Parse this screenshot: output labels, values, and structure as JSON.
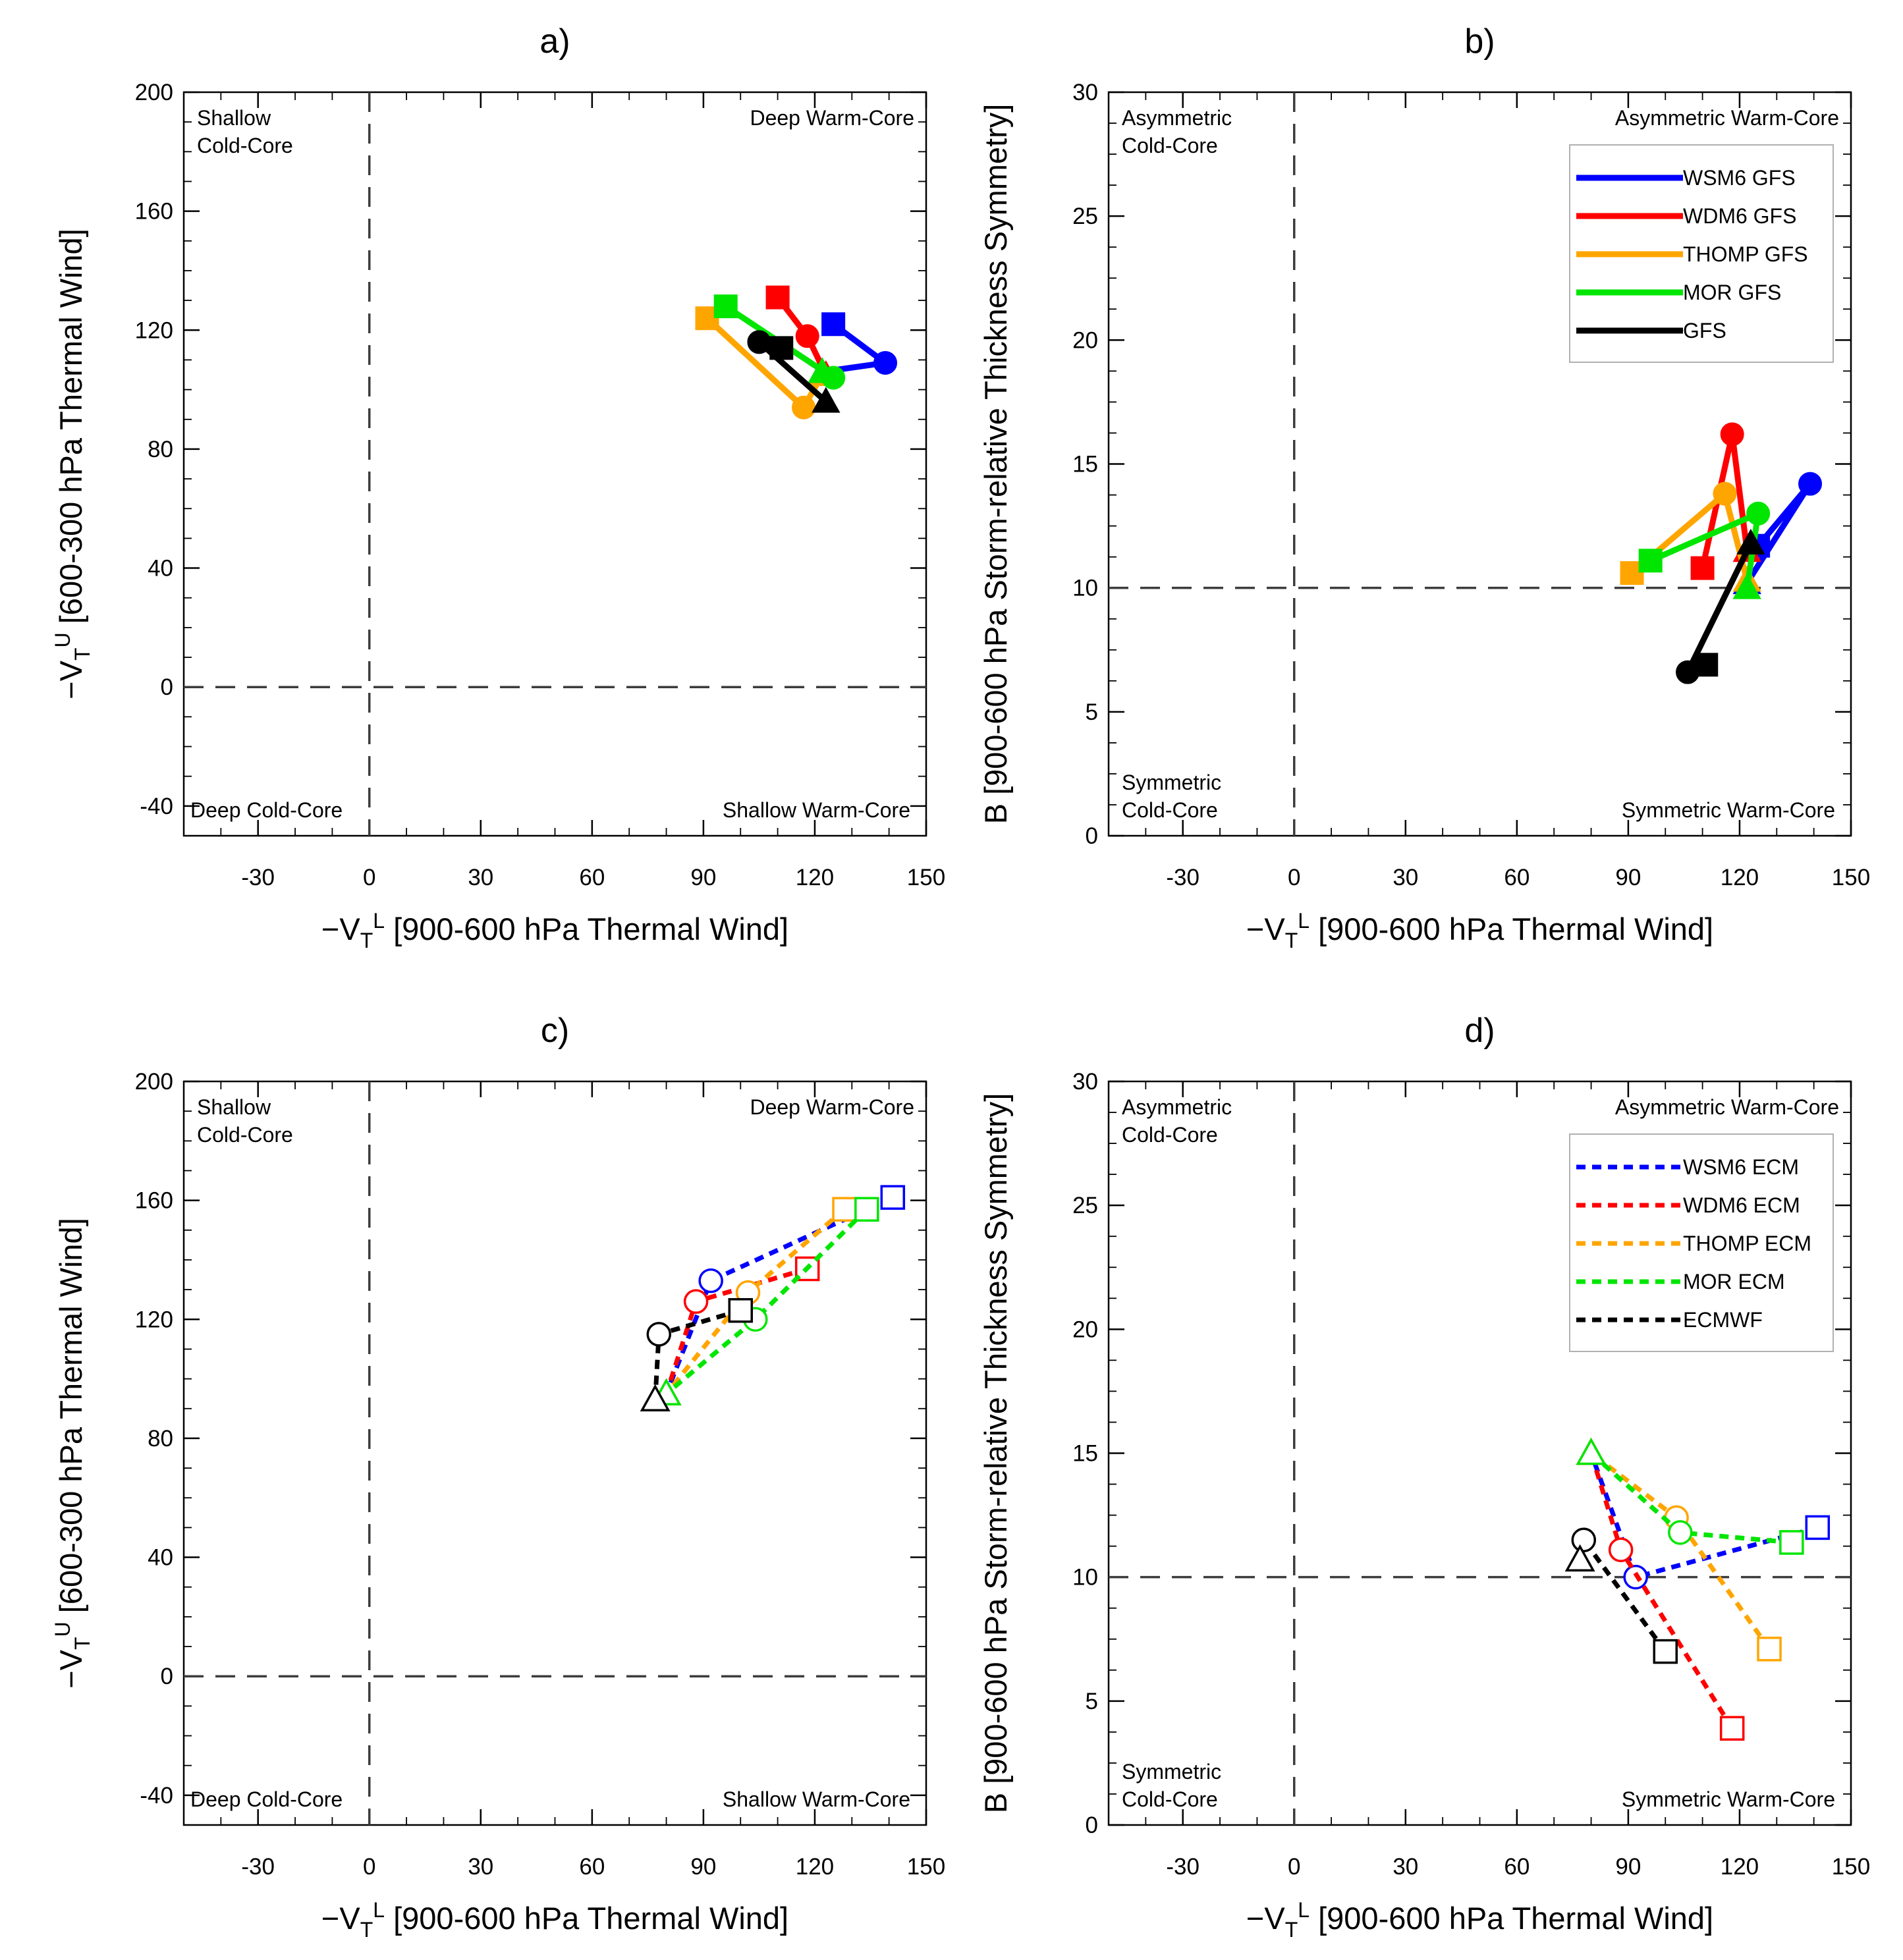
{
  "colors": {
    "WSM6": "#0000ff",
    "WDM6": "#ff0000",
    "THOMP": "#ffa500",
    "MOR": "#00e600",
    "CTRL": "#000000",
    "axes": "#000000",
    "reference_line": "#3c3c3c"
  },
  "chart_data": [
    {
      "id": "a",
      "type": "line",
      "panel_label": "a)",
      "title": "a)",
      "style": "solid",
      "xlabel_parts": [
        "−V",
        "T",
        "L",
        " [900-600 hPa Thermal Wind]"
      ],
      "ylabel_parts": [
        "−V",
        "T",
        "U",
        " [600-300 hPa Thermal Wind]"
      ],
      "xlim": [
        -50,
        150
      ],
      "ylim": [
        -50,
        200
      ],
      "xticks": [
        -30,
        0,
        30,
        60,
        90,
        120,
        150
      ],
      "yticks": [
        -40,
        0,
        40,
        80,
        120,
        160,
        200
      ],
      "ref_x": 0,
      "ref_y": 0,
      "quadrants": {
        "top_left": [
          "Shallow",
          "Cold-Core"
        ],
        "top_right": [
          "Deep Warm-Core"
        ],
        "bottom_left": [
          "Deep Cold-Core"
        ],
        "bottom_right": [
          "Shallow Warm-Core"
        ]
      },
      "series": [
        {
          "name": "WSM6 GFS",
          "color_key": "WSM6",
          "x": [
            125,
            139,
            122
          ],
          "y": [
            122,
            109,
            106
          ],
          "markers": [
            "square",
            "circle",
            "triangle"
          ]
        },
        {
          "name": "WDM6 GFS",
          "color_key": "WDM6",
          "x": [
            110,
            118,
            123
          ],
          "y": [
            131,
            118,
            105
          ],
          "markers": [
            "square",
            "circle",
            "triangle"
          ]
        },
        {
          "name": "THOMP GFS",
          "color_key": "THOMP",
          "x": [
            91,
            117,
            122
          ],
          "y": [
            124,
            94,
            105
          ],
          "markers": [
            "square",
            "circle",
            "triangle"
          ]
        },
        {
          "name": "MOR GFS",
          "color_key": "MOR",
          "x": [
            96,
            125,
            122
          ],
          "y": [
            128,
            104,
            106
          ],
          "markers": [
            "square",
            "circle",
            "triangle"
          ]
        },
        {
          "name": "GFS",
          "color_key": "CTRL",
          "x": [
            111,
            105,
            123
          ],
          "y": [
            114,
            116,
            96
          ],
          "markers": [
            "square",
            "circle",
            "triangle"
          ]
        }
      ]
    },
    {
      "id": "b",
      "type": "line",
      "panel_label": "b)",
      "title": "b)",
      "style": "solid",
      "xlabel_parts": [
        "−V",
        "T",
        "L",
        " [900-600 hPa Thermal Wind]"
      ],
      "ylabel_parts": [
        "B [900-600 hPa Storm-relative Thickness Symmetry]"
      ],
      "xlim": [
        -50,
        150
      ],
      "ylim": [
        0,
        30
      ],
      "xticks": [
        -30,
        0,
        30,
        60,
        90,
        120,
        150
      ],
      "yticks": [
        0,
        5,
        10,
        15,
        20,
        25,
        30
      ],
      "ref_x": 0,
      "ref_y": 10,
      "quadrants": {
        "top_left": [
          "Asymmetric",
          "Cold-Core"
        ],
        "top_right": [
          "Asymmetric Warm-Core"
        ],
        "bottom_left": [
          "Symmetric",
          "Cold-Core"
        ],
        "bottom_right": [
          "Symmetric Warm-Core"
        ]
      },
      "legend_title_placement": "top-right",
      "series": [
        {
          "name": "WSM6 GFS",
          "color_key": "WSM6",
          "x": [
            125,
            139,
            122
          ],
          "y": [
            11.7,
            14.2,
            10.2
          ],
          "markers": [
            "square",
            "circle",
            "triangle"
          ]
        },
        {
          "name": "WDM6 GFS",
          "color_key": "WDM6",
          "x": [
            110,
            118,
            122
          ],
          "y": [
            10.8,
            16.2,
            11.5
          ],
          "markers": [
            "square",
            "circle",
            "triangle"
          ]
        },
        {
          "name": "THOMP GFS",
          "color_key": "THOMP",
          "x": [
            91,
            116,
            122
          ],
          "y": [
            10.6,
            13.8,
            10.3
          ],
          "markers": [
            "square",
            "circle",
            "triangle"
          ]
        },
        {
          "name": "MOR GFS",
          "color_key": "MOR",
          "x": [
            96,
            125,
            122
          ],
          "y": [
            11.1,
            13.0,
            10.0
          ],
          "markers": [
            "square",
            "circle",
            "triangle"
          ]
        },
        {
          "name": "GFS",
          "color_key": "CTRL",
          "x": [
            111,
            106,
            123
          ],
          "y": [
            6.9,
            6.6,
            11.8
          ],
          "markers": [
            "square",
            "circle",
            "triangle"
          ]
        }
      ]
    },
    {
      "id": "c",
      "type": "line",
      "panel_label": "c)",
      "title": "c)",
      "style": "dashed",
      "xlabel_parts": [
        "−V",
        "T",
        "L",
        " [900-600 hPa Thermal Wind]"
      ],
      "ylabel_parts": [
        "−V",
        "T",
        "U",
        " [600-300 hPa Thermal Wind]"
      ],
      "xlim": [
        -50,
        150
      ],
      "ylim": [
        -50,
        200
      ],
      "xticks": [
        -30,
        0,
        30,
        60,
        90,
        120,
        150
      ],
      "yticks": [
        -40,
        0,
        40,
        80,
        120,
        160,
        200
      ],
      "ref_x": 0,
      "ref_y": 0,
      "quadrants": {
        "top_left": [
          "Shallow",
          "Cold-Core"
        ],
        "top_right": [
          "Deep Warm-Core"
        ],
        "bottom_left": [
          "Deep Cold-Core"
        ],
        "bottom_right": [
          "Shallow Warm-Core"
        ]
      },
      "series": [
        {
          "name": "WSM6 ECM",
          "color_key": "WSM6",
          "x": [
            141,
            92,
            80
          ],
          "y": [
            161,
            133,
            95
          ],
          "markers": [
            "square",
            "circle",
            "triangle"
          ]
        },
        {
          "name": "WDM6 ECM",
          "color_key": "WDM6",
          "x": [
            118,
            88,
            80
          ],
          "y": [
            137,
            126,
            95
          ],
          "markers": [
            "square",
            "circle",
            "triangle"
          ]
        },
        {
          "name": "THOMP ECM",
          "color_key": "THOMP",
          "x": [
            128,
            102,
            80
          ],
          "y": [
            157,
            129,
            95
          ],
          "markers": [
            "square",
            "circle",
            "triangle"
          ]
        },
        {
          "name": "MOR ECM",
          "color_key": "MOR",
          "x": [
            134,
            104,
            80
          ],
          "y": [
            157,
            120,
            95
          ],
          "markers": [
            "square",
            "circle",
            "triangle"
          ]
        },
        {
          "name": "ECMWF",
          "color_key": "CTRL",
          "x": [
            100,
            78,
            77
          ],
          "y": [
            123,
            115,
            93
          ],
          "markers": [
            "square",
            "circle",
            "triangle"
          ]
        }
      ]
    },
    {
      "id": "d",
      "type": "line",
      "panel_label": "d)",
      "title": "d)",
      "style": "dashed",
      "xlabel_parts": [
        "−V",
        "T",
        "L",
        " [900-600 hPa Thermal Wind]"
      ],
      "ylabel_parts": [
        "B [900-600 hPa Storm-relative Thickness Symmetry]"
      ],
      "xlim": [
        -50,
        150
      ],
      "ylim": [
        0,
        30
      ],
      "xticks": [
        -30,
        0,
        30,
        60,
        90,
        120,
        150
      ],
      "yticks": [
        0,
        5,
        10,
        15,
        20,
        25,
        30
      ],
      "ref_x": 0,
      "ref_y": 10,
      "quadrants": {
        "top_left": [
          "Asymmetric",
          "Cold-Core"
        ],
        "top_right": [
          "Asymmetric Warm-Core"
        ],
        "bottom_left": [
          "Symmetric",
          "Cold-Core"
        ],
        "bottom_right": [
          "Symmetric Warm-Core"
        ]
      },
      "series": [
        {
          "name": "WSM6 ECM",
          "color_key": "WSM6",
          "x": [
            141,
            92,
            80
          ],
          "y": [
            12.0,
            10.0,
            15.0
          ],
          "markers": [
            "square",
            "circle",
            "triangle"
          ]
        },
        {
          "name": "WDM6 ECM",
          "color_key": "WDM6",
          "x": [
            118,
            88,
            80
          ],
          "y": [
            3.9,
            11.1,
            15.0
          ],
          "markers": [
            "square",
            "circle",
            "triangle"
          ]
        },
        {
          "name": "THOMP ECM",
          "color_key": "THOMP",
          "x": [
            128,
            103,
            80
          ],
          "y": [
            7.1,
            12.4,
            15.0
          ],
          "markers": [
            "square",
            "circle",
            "triangle"
          ]
        },
        {
          "name": "MOR ECM",
          "color_key": "MOR",
          "x": [
            134,
            104,
            80
          ],
          "y": [
            11.4,
            11.8,
            15.0
          ],
          "markers": [
            "square",
            "circle",
            "triangle"
          ]
        },
        {
          "name": "ECMWF",
          "color_key": "CTRL",
          "x": [
            100,
            78,
            77
          ],
          "y": [
            7.0,
            11.5,
            10.7
          ],
          "markers": [
            "square",
            "circle",
            "triangle"
          ]
        }
      ]
    }
  ]
}
